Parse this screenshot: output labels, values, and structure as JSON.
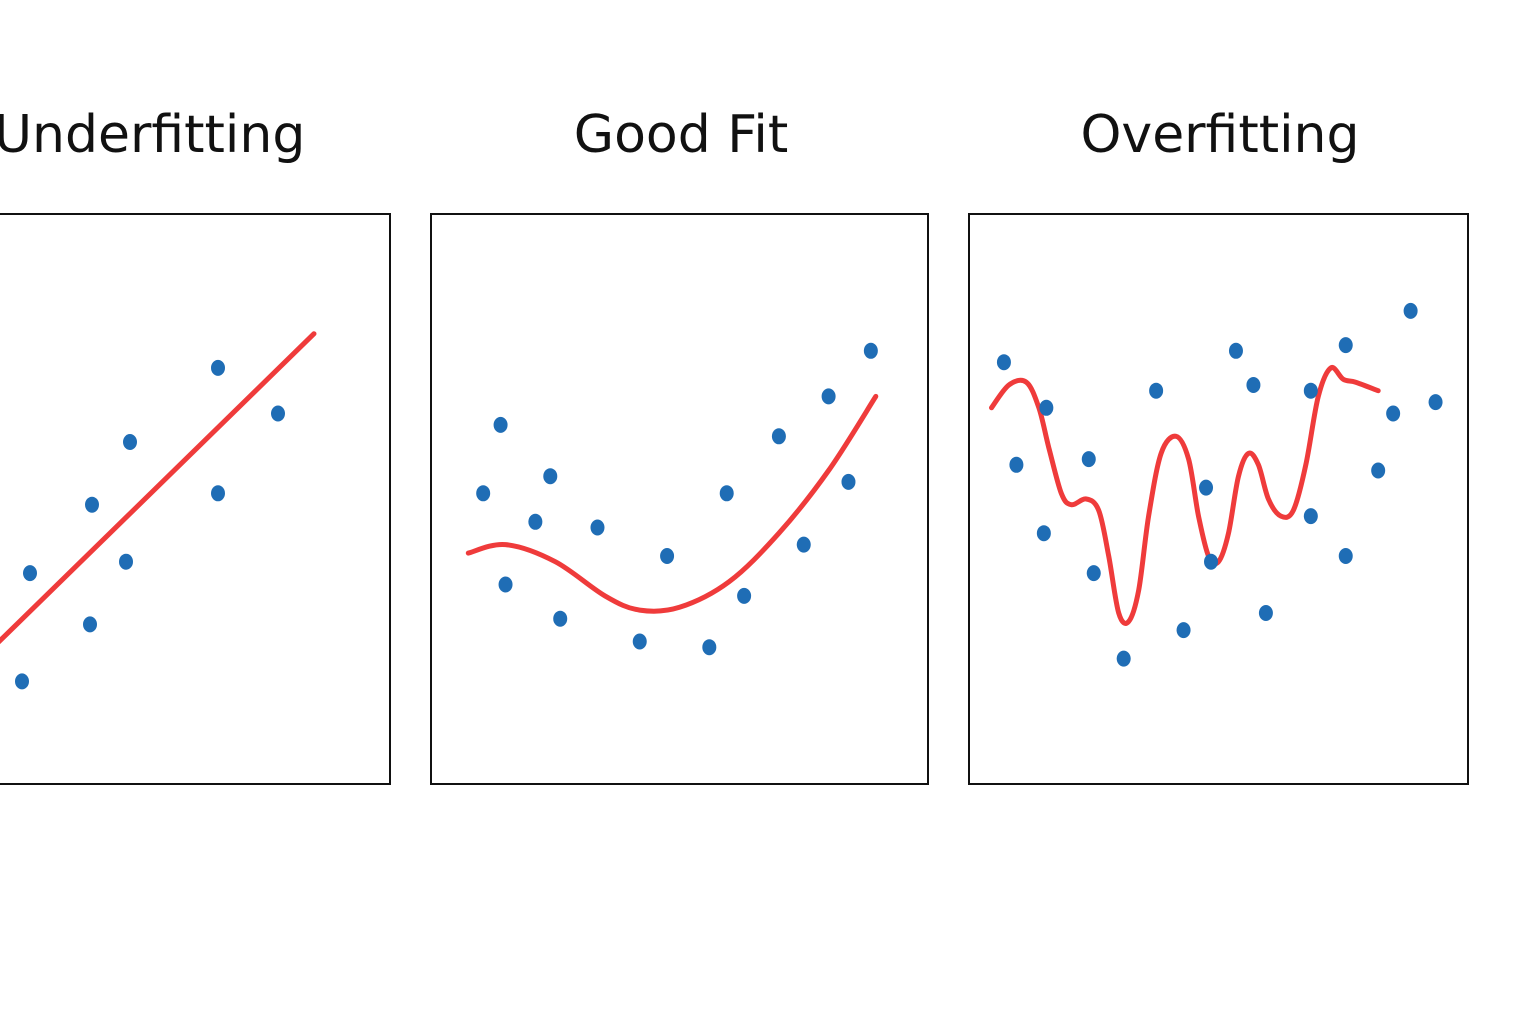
{
  "colors": {
    "points": "#1f6db5",
    "fit_line": "#ef3b3b",
    "frame": "#111111",
    "text": "#111111",
    "background": "#ffffff"
  },
  "chart_data": [
    {
      "type": "scatter",
      "title": "Underfitting",
      "xlim": [
        0,
        10
      ],
      "ylim": [
        0,
        10
      ],
      "grid": false,
      "xlabel": "",
      "ylabel": "",
      "points": [
        [
          0.8,
          1.8
        ],
        [
          1.0,
          3.7
        ],
        [
          2.5,
          2.8
        ],
        [
          2.55,
          4.9
        ],
        [
          3.4,
          3.9
        ],
        [
          3.5,
          6.0
        ],
        [
          5.7,
          5.1
        ],
        [
          5.7,
          7.3
        ],
        [
          7.2,
          6.5
        ]
      ],
      "fit_line": [
        [
          -0.5,
          2.0
        ],
        [
          8.1,
          7.9
        ]
      ]
    },
    {
      "type": "scatter",
      "title": "Good Fit",
      "xlim": [
        0,
        10
      ],
      "ylim": [
        0,
        10
      ],
      "grid": false,
      "xlabel": "",
      "ylabel": "",
      "points": [
        [
          1.05,
          5.1
        ],
        [
          1.4,
          6.3
        ],
        [
          1.5,
          3.5
        ],
        [
          2.1,
          4.6
        ],
        [
          2.4,
          5.4
        ],
        [
          2.6,
          2.9
        ],
        [
          3.35,
          4.5
        ],
        [
          4.2,
          2.5
        ],
        [
          4.75,
          4.0
        ],
        [
          5.6,
          2.4
        ],
        [
          5.95,
          5.1
        ],
        [
          6.3,
          3.3
        ],
        [
          7.0,
          6.1
        ],
        [
          7.5,
          4.2
        ],
        [
          8.0,
          6.8
        ],
        [
          8.4,
          5.3
        ],
        [
          8.85,
          7.6
        ]
      ],
      "fit_curve": [
        [
          0.75,
          4.05
        ],
        [
          1.5,
          4.2
        ],
        [
          2.5,
          3.9
        ],
        [
          3.5,
          3.3
        ],
        [
          4.2,
          3.05
        ],
        [
          5.0,
          3.1
        ],
        [
          6.0,
          3.55
        ],
        [
          7.0,
          4.4
        ],
        [
          8.0,
          5.5
        ],
        [
          8.95,
          6.8
        ]
      ]
    },
    {
      "type": "scatter",
      "title": "Overfitting",
      "xlim": [
        0,
        10
      ],
      "ylim": [
        0,
        10
      ],
      "grid": false,
      "xlabel": "",
      "ylabel": "",
      "points": [
        [
          0.7,
          7.4
        ],
        [
          0.95,
          5.6
        ],
        [
          1.5,
          4.4
        ],
        [
          1.55,
          6.6
        ],
        [
          2.4,
          5.7
        ],
        [
          2.5,
          3.7
        ],
        [
          3.1,
          2.2
        ],
        [
          3.75,
          6.9
        ],
        [
          4.3,
          2.7
        ],
        [
          4.75,
          5.2
        ],
        [
          4.85,
          3.9
        ],
        [
          5.35,
          7.6
        ],
        [
          5.7,
          7.0
        ],
        [
          5.95,
          3.0
        ],
        [
          6.85,
          4.7
        ],
        [
          6.85,
          6.9
        ],
        [
          7.55,
          4.0
        ],
        [
          7.55,
          7.7
        ],
        [
          8.2,
          5.5
        ],
        [
          8.5,
          6.5
        ],
        [
          8.85,
          8.3
        ],
        [
          9.35,
          6.7
        ]
      ],
      "fit_curve": [
        [
          0.45,
          6.6
        ],
        [
          0.8,
          7.0
        ],
        [
          1.15,
          7.05
        ],
        [
          1.4,
          6.6
        ],
        [
          1.6,
          5.9
        ],
        [
          1.85,
          5.1
        ],
        [
          2.05,
          4.9
        ],
        [
          2.35,
          5.0
        ],
        [
          2.6,
          4.8
        ],
        [
          2.8,
          4.0
        ],
        [
          3.0,
          3.0
        ],
        [
          3.2,
          2.85
        ],
        [
          3.4,
          3.4
        ],
        [
          3.6,
          4.7
        ],
        [
          3.85,
          5.8
        ],
        [
          4.15,
          6.1
        ],
        [
          4.4,
          5.7
        ],
        [
          4.6,
          4.7
        ],
        [
          4.8,
          4.0
        ],
        [
          5.0,
          3.9
        ],
        [
          5.2,
          4.4
        ],
        [
          5.4,
          5.4
        ],
        [
          5.6,
          5.8
        ],
        [
          5.8,
          5.6
        ],
        [
          6.0,
          5.0
        ],
        [
          6.25,
          4.7
        ],
        [
          6.5,
          4.8
        ],
        [
          6.75,
          5.6
        ],
        [
          7.0,
          6.8
        ],
        [
          7.25,
          7.3
        ],
        [
          7.5,
          7.1
        ],
        [
          7.75,
          7.05
        ],
        [
          8.2,
          6.9
        ]
      ]
    }
  ]
}
